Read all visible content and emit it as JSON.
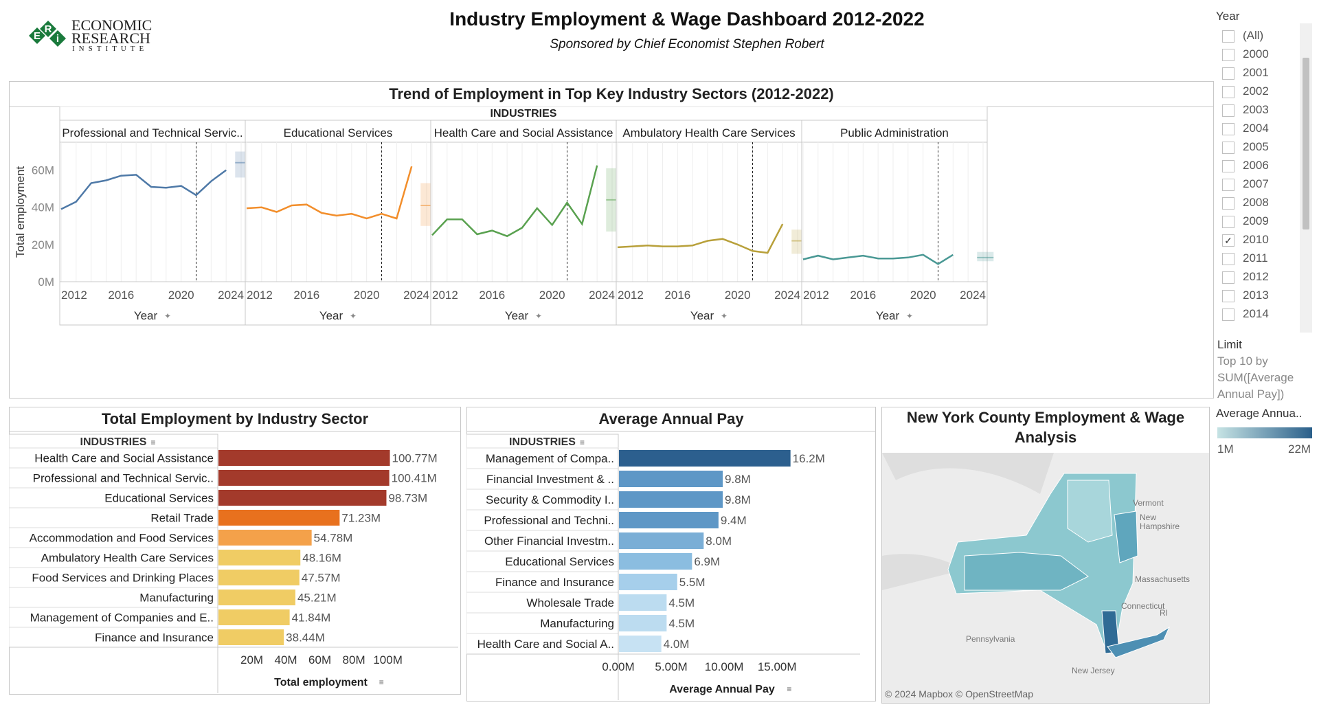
{
  "header": {
    "logo_line1": "ECONOMIC",
    "logo_line2": "RESEARCH",
    "logo_line3": "INSTITUTE",
    "logo_letters": [
      "E",
      "R",
      "i"
    ],
    "title": "Industry Employment & Wage Dashboard 2012-2022",
    "subtitle": "Sponsored by Chief Economist Stephen Robert"
  },
  "filter": {
    "label": "Year",
    "options": [
      "(All)",
      "2000",
      "2001",
      "2002",
      "2003",
      "2004",
      "2005",
      "2006",
      "2007",
      "2008",
      "2009",
      "2010",
      "2011",
      "2012",
      "2013",
      "2014"
    ],
    "checked": "2010",
    "limit_label": "Limit",
    "limit_text": "Top 10 by SUM([Average Annual Pay])"
  },
  "legend": {
    "title": "Average Annua..",
    "min_label": "1M",
    "max_label": "22M",
    "color_low": "#c6e3e4",
    "color_high": "#2a5f8a"
  },
  "trend": {
    "title": "Trend of Employment in Top Key Industry Sectors (2012-2022)",
    "group_header": "INDUSTRIES",
    "ylabel": "Total employment",
    "xlabel": "Year",
    "yticks": [
      "0M",
      "20M",
      "40M",
      "60M"
    ],
    "xticks": [
      "2012",
      "2016",
      "2020",
      "2024"
    ]
  },
  "chart_data": [
    {
      "type": "line",
      "title": "Trend of Employment in Top Key Industry Sectors (2012-2022)",
      "xlabel": "Year",
      "ylabel": "Total employment",
      "ylim": [
        0,
        75
      ],
      "xlim": [
        2012,
        2024
      ],
      "x": [
        2012,
        2013,
        2014,
        2015,
        2016,
        2017,
        2018,
        2019,
        2020,
        2021,
        2022,
        2023
      ],
      "series": [
        {
          "name": "Professional and Technical Servic..",
          "color": "#4e79a7",
          "values": [
            39,
            43,
            53,
            54.5,
            57,
            57.5,
            51,
            50.5,
            51.5,
            46.5,
            54,
            60
          ],
          "forecast": [
            56,
            64,
            70
          ]
        },
        {
          "name": "Educational Services",
          "color": "#f28e2b",
          "values": [
            39.5,
            40,
            37.5,
            41,
            41.5,
            37,
            35.5,
            36.5,
            34,
            36.5,
            34,
            62
          ],
          "forecast": [
            30,
            41,
            53
          ]
        },
        {
          "name": "Health Care and Social Assistance",
          "color": "#59a14f",
          "values": [
            25,
            33.5,
            33.5,
            25.5,
            27.5,
            24.5,
            29,
            39.5,
            30.5,
            42.5,
            31,
            62.5
          ],
          "forecast": [
            27,
            44,
            61
          ]
        },
        {
          "name": "Ambulatory Health Care Services",
          "color": "#b8a03a",
          "values": [
            18.5,
            19,
            19.5,
            19,
            19,
            19.5,
            22,
            23,
            20,
            16.5,
            15.5,
            31
          ],
          "forecast": [
            15,
            22,
            28
          ]
        },
        {
          "name": "Public Administration",
          "color": "#499894",
          "values": [
            12,
            14,
            12,
            13,
            14,
            12.5,
            12.5,
            13,
            14.5,
            9.5,
            14.5,
            null
          ],
          "forecast": [
            11,
            13,
            16
          ]
        }
      ]
    },
    {
      "type": "bar",
      "title": "Total Employment by Industry Sector",
      "xlabel": "Total employment",
      "ylabel": "INDUSTRIES",
      "categories": [
        "Health Care and Social Assistance",
        "Professional and Technical Servic..",
        "Educational Services",
        "Retail Trade",
        "Accommodation and Food Services",
        "Ambulatory Health Care Services",
        "Food Services and Drinking Places",
        "Manufacturing",
        "Management of Companies and E..",
        "Finance and Insurance"
      ],
      "values": [
        100.77,
        100.41,
        98.73,
        71.23,
        54.78,
        48.16,
        47.57,
        45.21,
        41.84,
        38.44
      ],
      "value_labels": [
        "100.77M",
        "100.41M",
        "98.73M",
        "71.23M",
        "54.78M",
        "48.16M",
        "47.57M",
        "45.21M",
        "41.84M",
        "38.44M"
      ],
      "colors": [
        "#a33a2b",
        "#a33a2b",
        "#a33a2b",
        "#e8711e",
        "#f4a14a",
        "#f0cc64",
        "#f0cc64",
        "#f0cc64",
        "#f0cc64",
        "#f0cc64"
      ],
      "xticks": [
        "20M",
        "40M",
        "60M",
        "80M",
        "100M"
      ],
      "xlim": [
        0,
        105
      ]
    },
    {
      "type": "bar",
      "title": "Average Annual Pay",
      "xlabel": "Average Annual Pay",
      "ylabel": "INDUSTRIES",
      "categories": [
        "Management of Compa..",
        "Financial Investment & ..",
        "Security & Commodity I..",
        "Professional and Techni..",
        "Other Financial Investm..",
        "Educational Services",
        "Finance and Insurance",
        "Wholesale Trade",
        "Manufacturing",
        "Health Care and Social A.."
      ],
      "values": [
        16.2,
        9.8,
        9.8,
        9.4,
        8.0,
        6.9,
        5.5,
        4.5,
        4.5,
        4.0
      ],
      "value_labels": [
        "16.2M",
        "9.8M",
        "9.8M",
        "9.4M",
        "8.0M",
        "6.9M",
        "5.5M",
        "4.5M",
        "4.5M",
        "4.0M"
      ],
      "colors": [
        "#2c5f8e",
        "#5e97c6",
        "#5e97c6",
        "#5e97c6",
        "#7aaed6",
        "#8bbde0",
        "#a6cfeb",
        "#bcdcf0",
        "#bcdcf0",
        "#c7e2f3"
      ],
      "xticks": [
        "0.00M",
        "5.00M",
        "10.00M",
        "15.00M"
      ],
      "xlim": [
        0,
        17
      ]
    }
  ],
  "bars_left": {
    "header": "INDUSTRIES"
  },
  "bars_right": {
    "header": "INDUSTRIES"
  },
  "map": {
    "title": "New York County Employment & Wage Analysis",
    "labels": [
      "Vermont",
      "New Hampshire",
      "Massachusetts",
      "Connecticut",
      "RI",
      "Pennsylvania",
      "New Jersey"
    ],
    "attribution": "© 2024 Mapbox © OpenStreetMap"
  }
}
